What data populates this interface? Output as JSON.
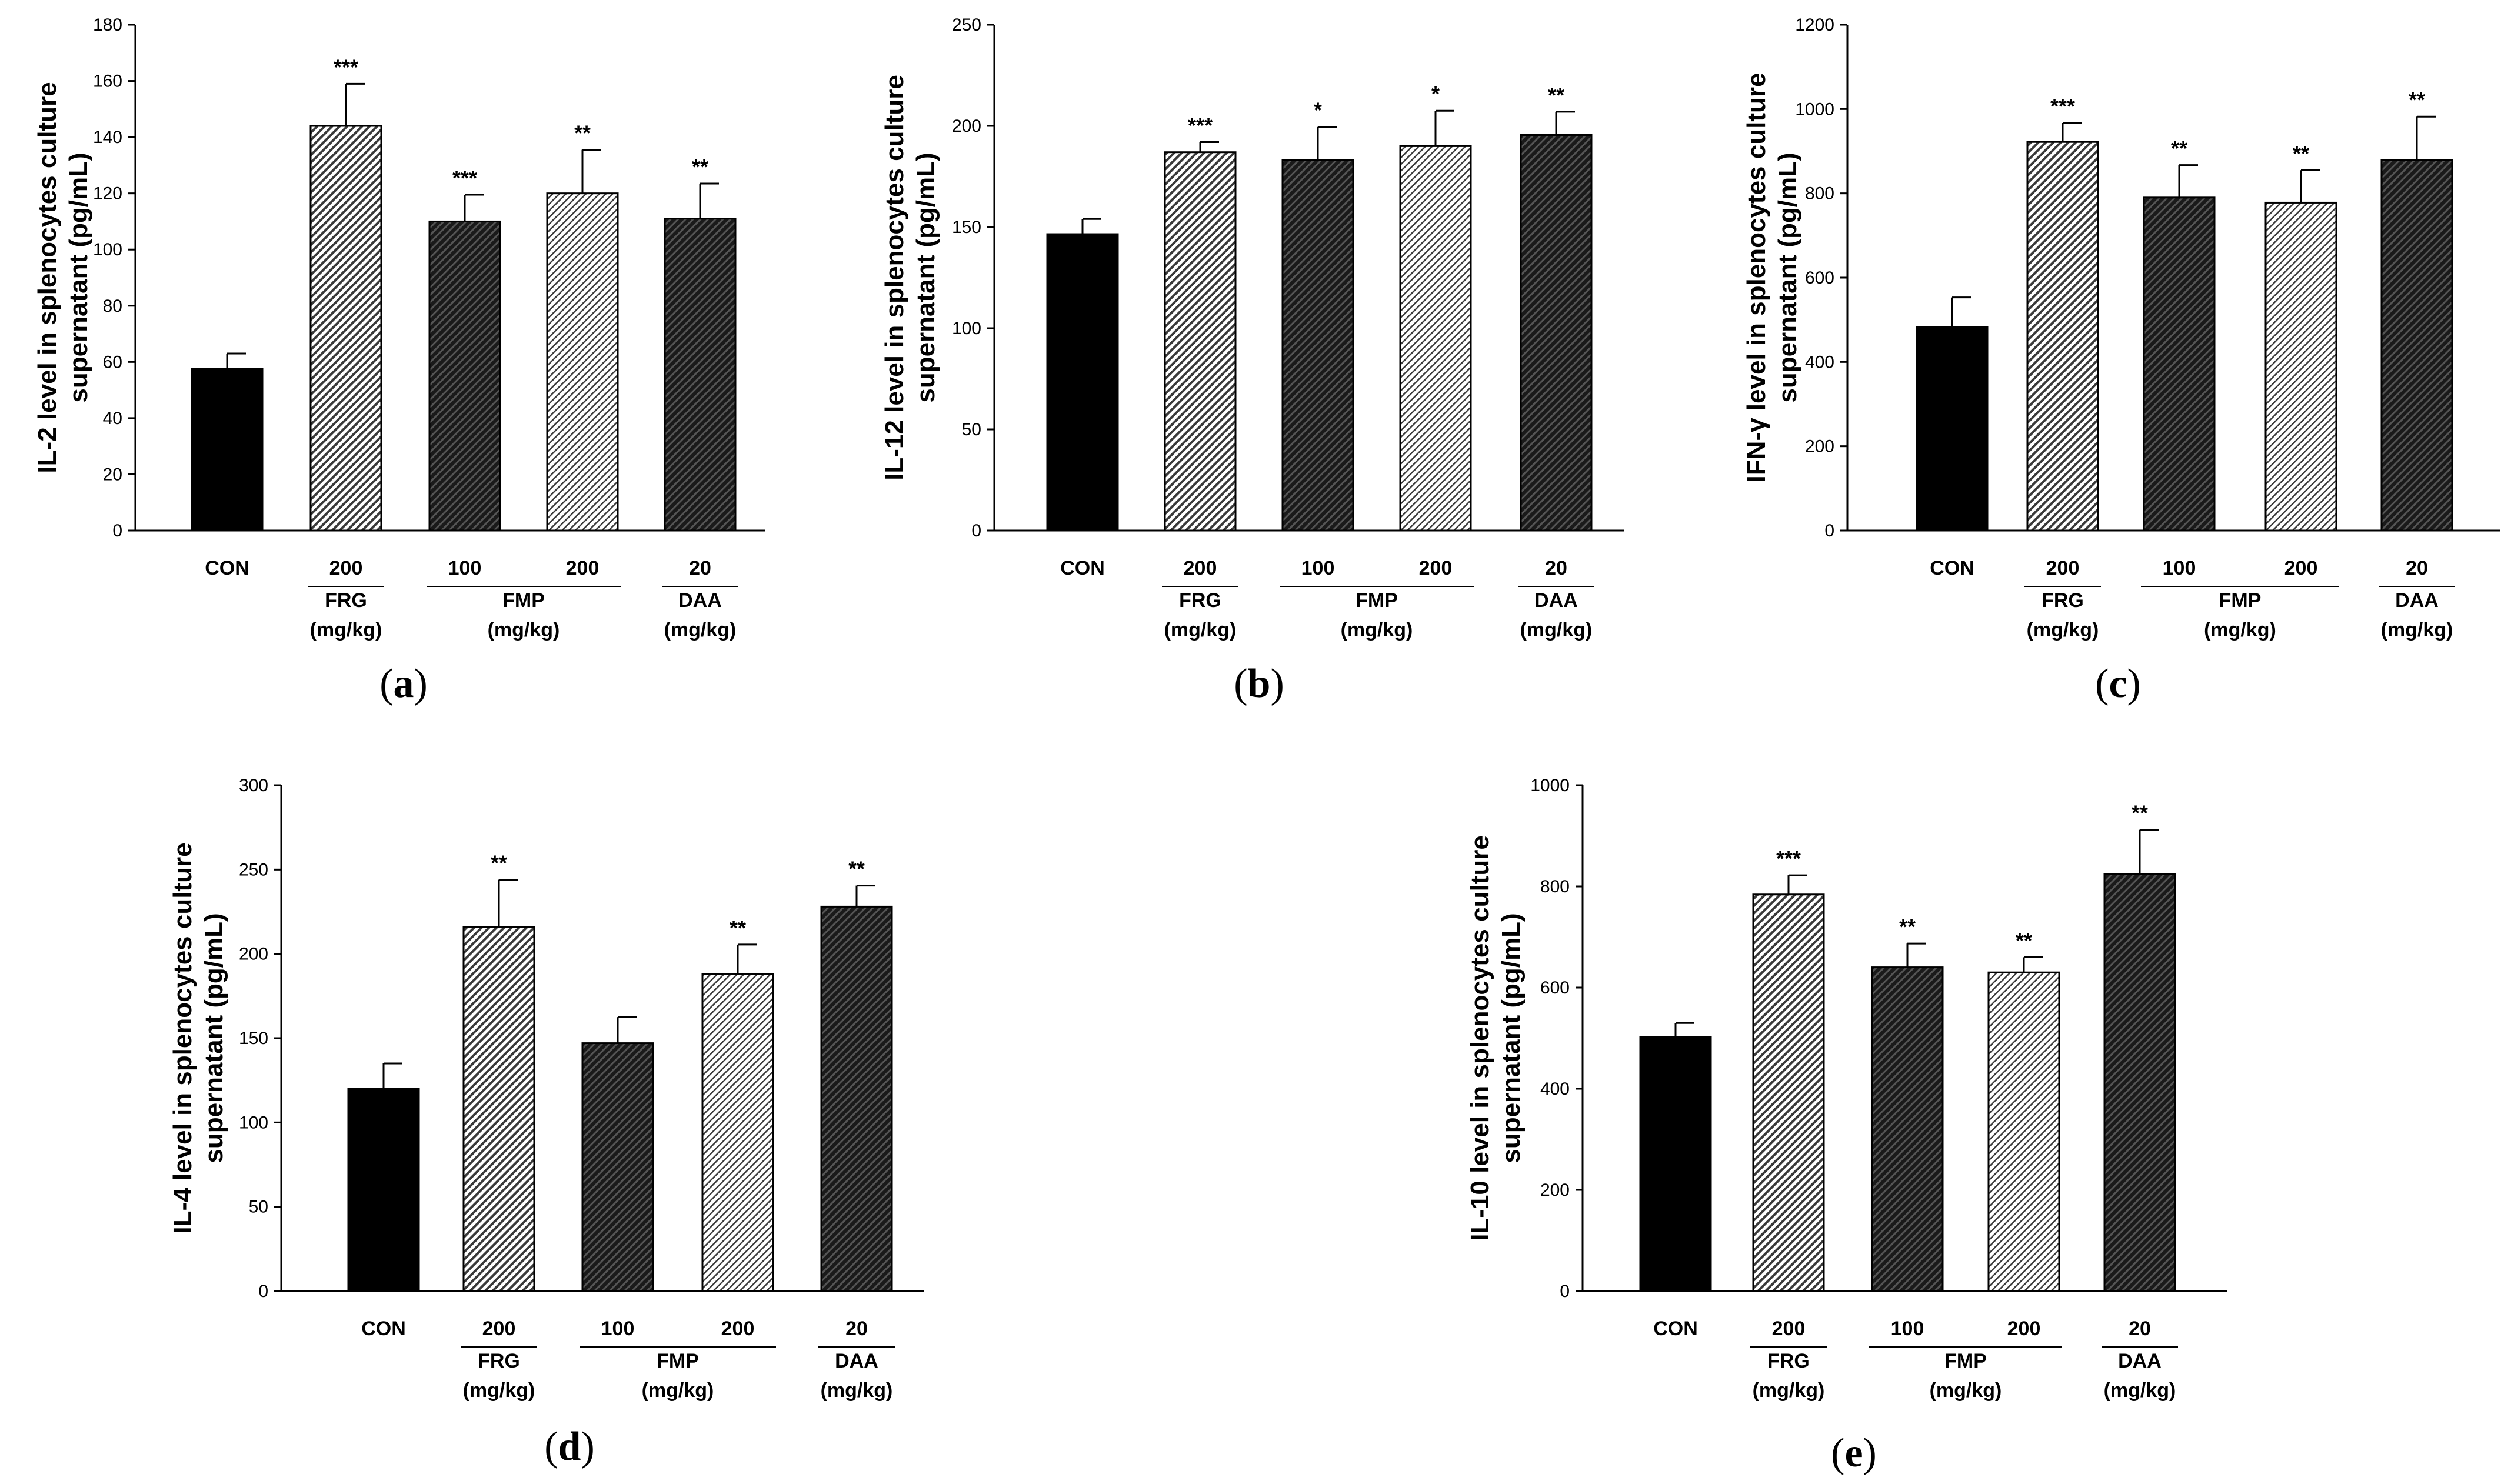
{
  "chart_data": [
    {
      "type": "bar",
      "panel_label": "a",
      "ylabel_line1": "IL-2 level in splenocytes culture",
      "ylabel_line2": "supernatant (pg/mL)",
      "ylim": [
        0,
        180
      ],
      "yticks": [
        "0",
        "20",
        "40",
        "60",
        "80",
        "100",
        "120",
        "140",
        "160",
        "180"
      ],
      "categories": [
        "CON",
        "FRG 200",
        "FMP 100",
        "FMP 200",
        "DAA 20"
      ],
      "values": [
        57.5,
        144,
        110,
        120,
        111
      ],
      "errors": [
        5.5,
        15,
        9.5,
        15.5,
        12.5
      ],
      "significance": [
        "",
        "***",
        "***",
        "**",
        "**"
      ],
      "dose_labels": [
        "",
        "200",
        "100",
        "200",
        "20"
      ],
      "groups": [
        {
          "name": "CON",
          "unit": ""
        },
        {
          "name": "FRG",
          "unit": "(mg/kg)"
        },
        {
          "name": "FMP",
          "unit": "(mg/kg)"
        },
        {
          "name": "DAA",
          "unit": "(mg/kg)"
        }
      ]
    },
    {
      "type": "bar",
      "panel_label": "b",
      "ylabel_line1": "IL-12 level in splenocytes culture",
      "ylabel_line2": "supernatant (pg/mL)",
      "ylim": [
        0,
        250
      ],
      "yticks": [
        "0",
        "50",
        "100",
        "150",
        "200",
        "250"
      ],
      "categories": [
        "CON",
        "FRG 200",
        "FMP 100",
        "FMP 200",
        "DAA 20"
      ],
      "values": [
        146.5,
        187,
        183,
        190,
        195.5
      ],
      "errors": [
        7.5,
        5,
        16.5,
        17.5,
        11.5
      ],
      "significance": [
        "",
        "***",
        "*",
        "*",
        "**"
      ],
      "dose_labels": [
        "",
        "200",
        "100",
        "200",
        "20"
      ],
      "groups": [
        {
          "name": "CON",
          "unit": ""
        },
        {
          "name": "FRG",
          "unit": "(mg/kg)"
        },
        {
          "name": "FMP",
          "unit": "(mg/kg)"
        },
        {
          "name": "DAA",
          "unit": "(mg/kg)"
        }
      ]
    },
    {
      "type": "bar",
      "panel_label": "c",
      "ylabel_line1": "IFN-γ level in splenocytes culture",
      "ylabel_line2": "supernatant (pg/mL)",
      "ylim": [
        0,
        1200
      ],
      "yticks": [
        "0",
        "200",
        "400",
        "600",
        "800",
        "1000",
        "1200"
      ],
      "categories": [
        "CON",
        "FRG 200",
        "FMP 100",
        "FMP 200",
        "DAA 20"
      ],
      "values": [
        483,
        922,
        790,
        778,
        879
      ],
      "errors": [
        70,
        45,
        77,
        77,
        103
      ],
      "significance": [
        "",
        "***",
        "**",
        "**",
        "**"
      ],
      "dose_labels": [
        "",
        "200",
        "100",
        "200",
        "20"
      ],
      "groups": [
        {
          "name": "CON",
          "unit": ""
        },
        {
          "name": "FRG",
          "unit": "(mg/kg)"
        },
        {
          "name": "FMP",
          "unit": "(mg/kg)"
        },
        {
          "name": "DAA",
          "unit": "(mg/kg)"
        }
      ]
    },
    {
      "type": "bar",
      "panel_label": "d",
      "ylabel_line1": "IL-4 level in splenocytes culture",
      "ylabel_line2": "supernatant (pg/mL)",
      "ylim": [
        0,
        300
      ],
      "yticks": [
        "0",
        "50",
        "100",
        "150",
        "200",
        "250",
        "300"
      ],
      "categories": [
        "CON",
        "FRG 200",
        "FMP 100",
        "FMP 200",
        "DAA 20"
      ],
      "values": [
        120,
        216,
        147,
        188,
        228
      ],
      "errors": [
        15,
        28,
        15.5,
        17.5,
        12.5
      ],
      "significance": [
        "",
        "**",
        "",
        "**",
        "**"
      ],
      "dose_labels": [
        "",
        "200",
        "100",
        "200",
        "20"
      ],
      "groups": [
        {
          "name": "CON",
          "unit": ""
        },
        {
          "name": "FRG",
          "unit": "(mg/kg)"
        },
        {
          "name": "FMP",
          "unit": "(mg/kg)"
        },
        {
          "name": "DAA",
          "unit": "(mg/kg)"
        }
      ]
    },
    {
      "type": "bar",
      "panel_label": "e",
      "ylabel_line1": "IL-10 level in splenocytes culture",
      "ylabel_line2": "supernatant (pg/mL)",
      "ylim": [
        0,
        1000
      ],
      "yticks": [
        "0",
        "200",
        "400",
        "600",
        "800",
        "1000"
      ],
      "categories": [
        "CON",
        "FRG 200",
        "FMP 100",
        "FMP 200",
        "DAA 20"
      ],
      "values": [
        502,
        784,
        640,
        630,
        825
      ],
      "errors": [
        28,
        38,
        47,
        30,
        87
      ],
      "significance": [
        "",
        "***",
        "**",
        "**",
        "**"
      ],
      "dose_labels": [
        "",
        "200",
        "100",
        "200",
        "20"
      ],
      "groups": [
        {
          "name": "CON",
          "unit": ""
        },
        {
          "name": "FRG",
          "unit": "(mg/kg)"
        },
        {
          "name": "FMP",
          "unit": "(mg/kg)"
        },
        {
          "name": "DAA",
          "unit": "(mg/kg)"
        }
      ]
    }
  ]
}
